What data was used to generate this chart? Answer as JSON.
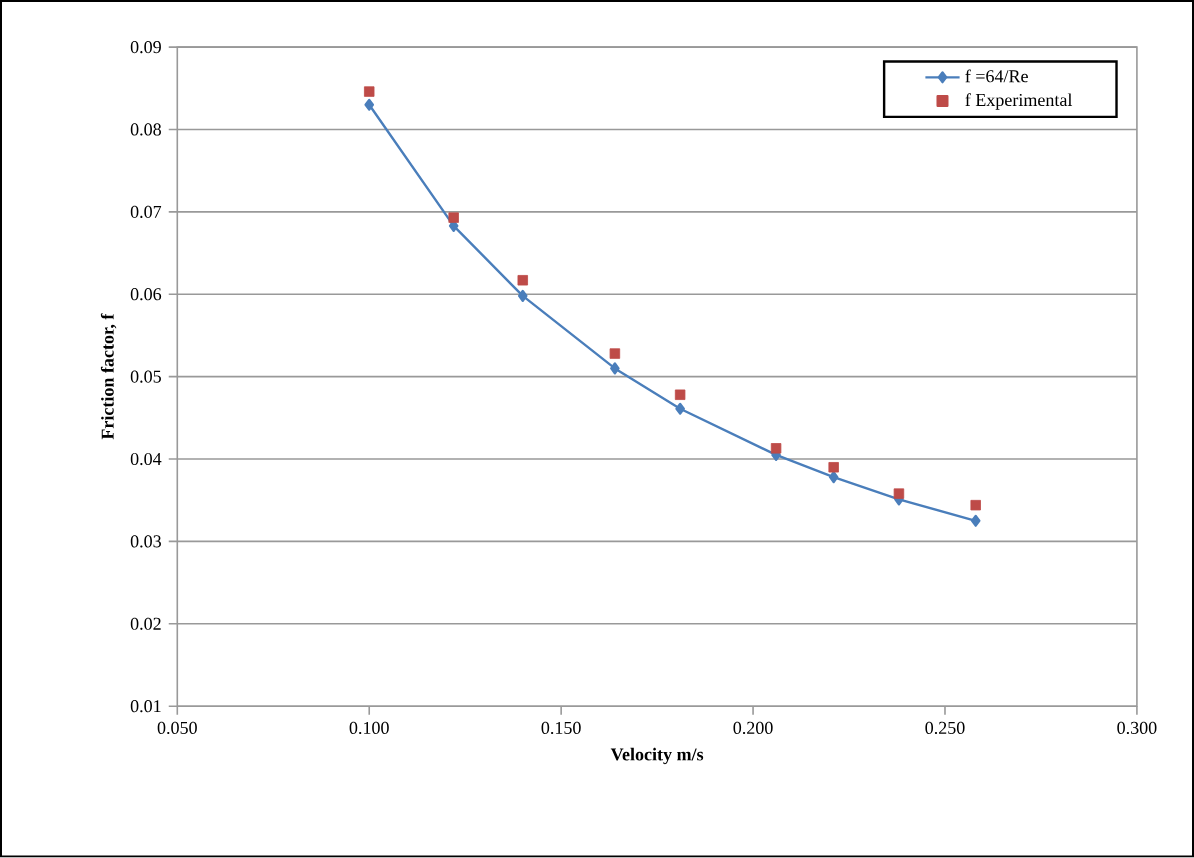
{
  "chart_data": {
    "type": "line",
    "xlabel": "Velocity m/s",
    "ylabel": "Friction factor, f",
    "xlim": [
      0.05,
      0.3
    ],
    "xticks": [
      {
        "value": 0.05,
        "label": "0.050"
      },
      {
        "value": 0.1,
        "label": "0.100"
      },
      {
        "value": 0.15,
        "label": "0.150"
      },
      {
        "value": 0.2,
        "label": "0.200"
      },
      {
        "value": 0.25,
        "label": "0.250"
      },
      {
        "value": 0.3,
        "label": "0.300"
      }
    ],
    "ylim": [
      0.01,
      0.09
    ],
    "yticks": [
      0.01,
      0.02,
      0.03,
      0.04,
      0.05,
      0.06,
      0.07,
      0.08,
      0.09
    ],
    "grid": "y",
    "legend": "top right",
    "x": [
      0.1,
      0.122,
      0.14,
      0.164,
      0.181,
      0.206,
      0.221,
      0.238,
      0.258
    ],
    "series": [
      {
        "name": "f =64/Re",
        "color": "#4a7ebb",
        "marker": "diamond",
        "values": [
          0.083,
          0.0683,
          0.0598,
          0.051,
          0.0461,
          0.0405,
          0.0378,
          0.0351,
          0.0325
        ]
      },
      {
        "name": "f Experimental",
        "type": "scatter",
        "color": "#be4b48",
        "marker": "square",
        "values": [
          0.0846,
          0.0693,
          0.0617,
          0.0528,
          0.0478,
          0.0413,
          0.039,
          0.0358,
          0.0344
        ]
      }
    ]
  }
}
